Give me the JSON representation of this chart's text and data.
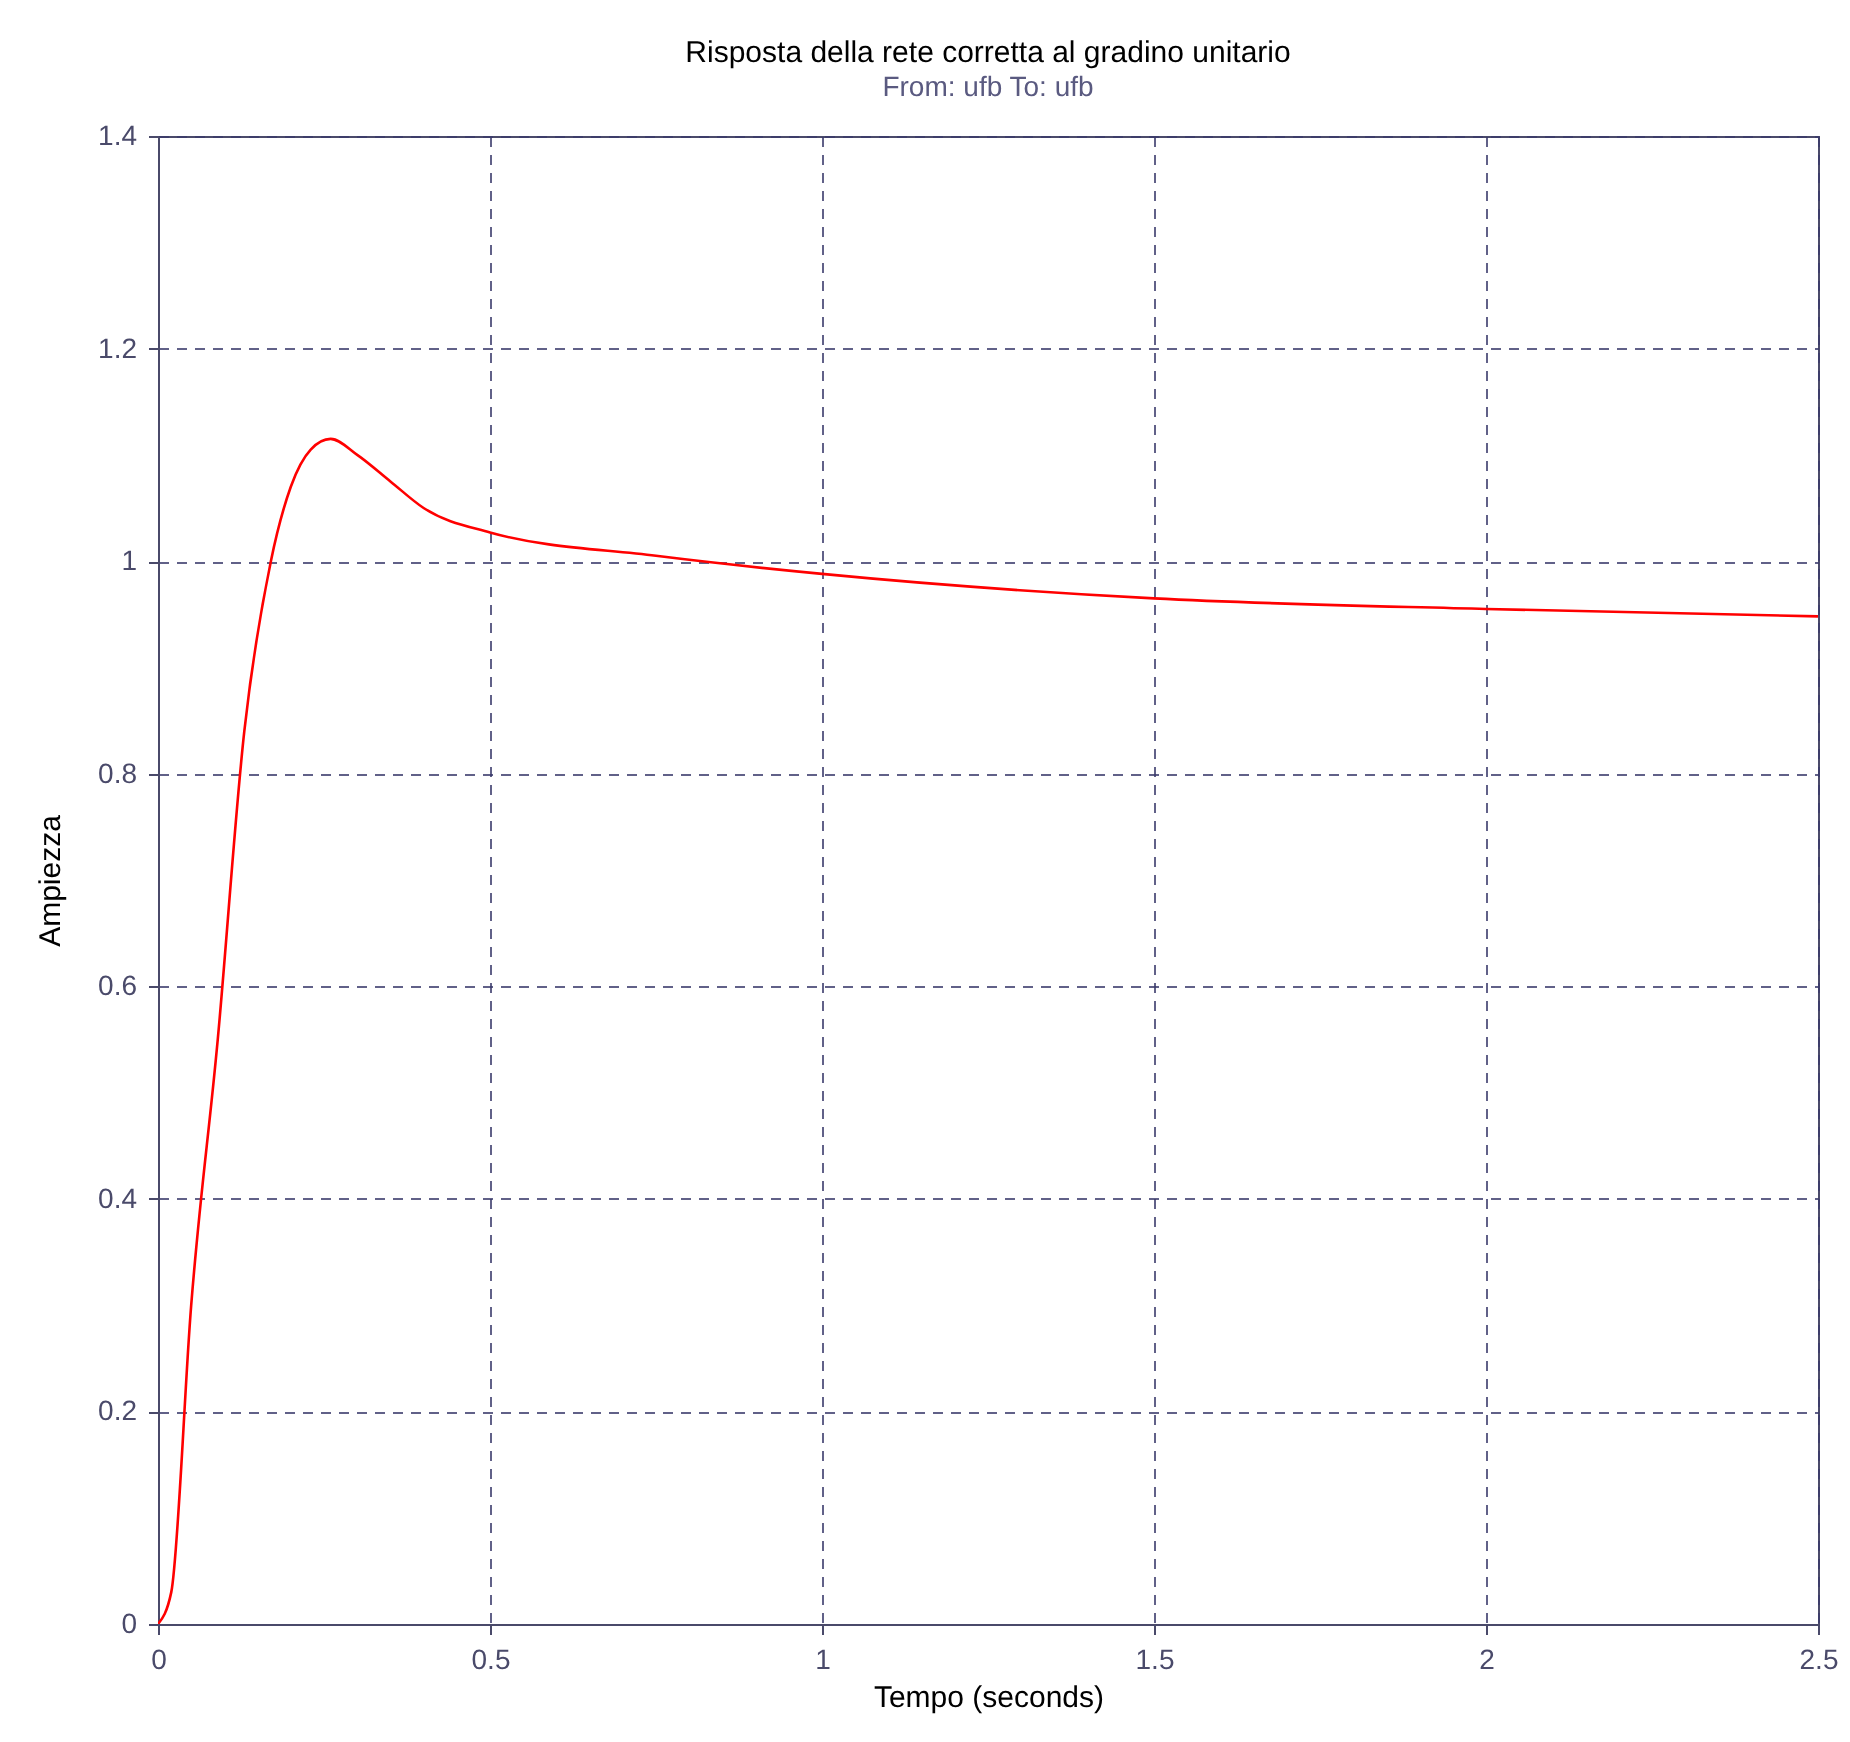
{
  "chart_data": {
    "type": "line",
    "title": "Risposta della rete corretta al gradino unitario",
    "subtitle": "From: ufb  To: ufb",
    "xlabel": "Tempo (seconds)",
    "ylabel": "Ampiezza",
    "x": [
      0,
      0.02,
      0.05,
      0.09,
      0.13,
      0.17,
      0.2,
      0.23,
      0.26,
      0.3,
      0.35,
      0.4,
      0.5,
      0.75,
      1,
      1.5,
      2,
      2.5
    ],
    "series": [
      {
        "color": "#ff0000",
        "values": [
          0,
          0.03,
          0.3,
          0.55,
          0.84,
          1.0,
          1.07,
          1.105,
          1.115,
          1.1,
          1.075,
          1.05,
          1.027,
          1.005,
          0.988,
          0.965,
          0.955,
          0.948
        ]
      }
    ],
    "xlim": [
      0,
      2.5
    ],
    "xticks": [
      0,
      0.5,
      1,
      1.5,
      2,
      2.5
    ],
    "ylim": [
      0,
      1.4
    ],
    "yticks": [
      0,
      0.2,
      0.4,
      0.6,
      0.8,
      1,
      1.2,
      1.4
    ],
    "grid": true,
    "line_style": "solid",
    "marker": "none",
    "legend": false
  }
}
